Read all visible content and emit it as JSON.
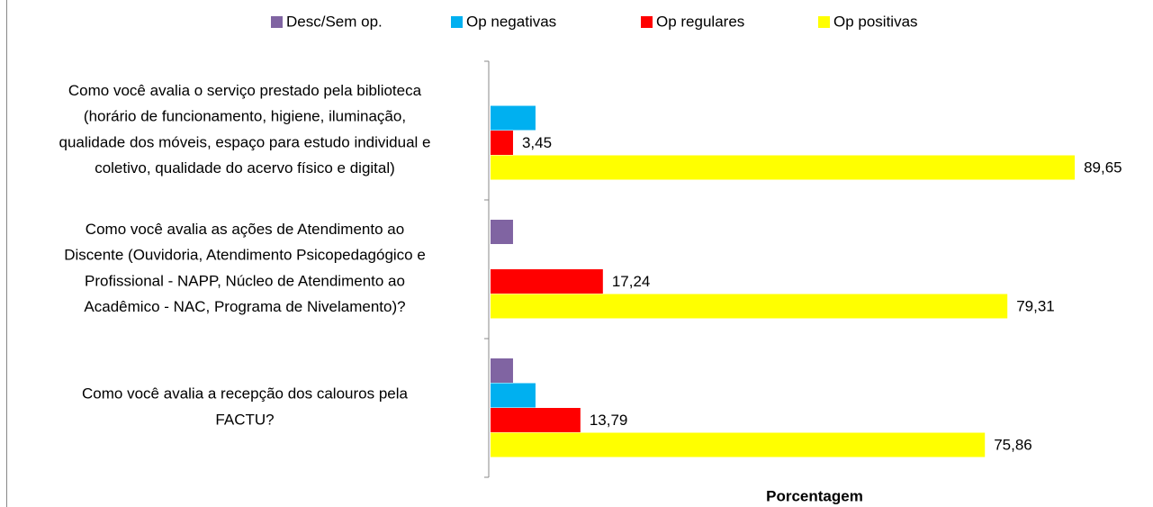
{
  "chart_data": {
    "type": "bar",
    "orientation": "horizontal",
    "categories": [
      [
        "Como você avalia o serviço prestado pela biblioteca",
        "(horário de funcionamento, higiene, iluminação,",
        "qualidade dos móveis, espaço para estudo individual e",
        "coletivo, qualidade do acervo físico e digital)"
      ],
      [
        "Como você avalia as ações de Atendimento ao",
        "Discente (Ouvidoria, Atendimento Psicopedagógico e",
        "Profissional - NAPP, Núcleo de Atendimento ao",
        "Acadêmico - NAC, Programa de Nivelamento)?"
      ],
      [
        "Como você avalia a recepção dos calouros pela",
        "FACTU?"
      ]
    ],
    "series": [
      {
        "name": "Desc/Sem op.",
        "color": "#8064a2",
        "values": [
          0,
          3.45,
          3.45
        ]
      },
      {
        "name": "Op negativas",
        "color": "#00b0f0",
        "values": [
          6.9,
          0,
          6.9
        ]
      },
      {
        "name": "Op regulares",
        "color": "#ff0000",
        "values": [
          3.45,
          17.24,
          13.79
        ],
        "value_labels": [
          "3,45",
          "17,24",
          "13,79"
        ]
      },
      {
        "name": "Op positivas",
        "color": "#ffff00",
        "values": [
          89.65,
          79.31,
          75.86
        ],
        "value_labels": [
          "89,65",
          "79,31",
          "75,86"
        ]
      }
    ],
    "xlabel": "Porcentagem",
    "xlim": [
      0,
      100
    ],
    "legend": "top"
  }
}
